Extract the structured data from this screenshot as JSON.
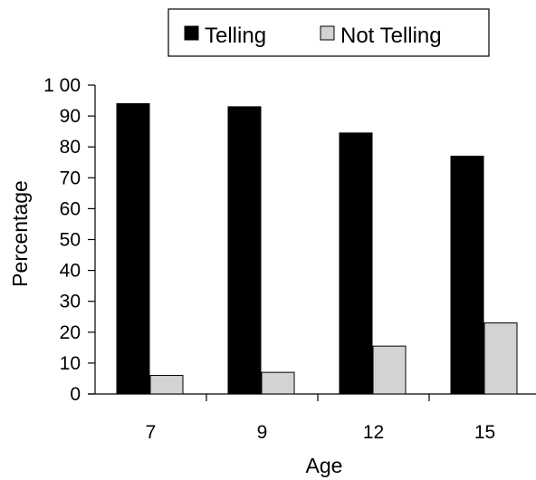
{
  "chart_data": {
    "type": "bar",
    "title": "",
    "xlabel": "Age",
    "ylabel": "Percentage",
    "categories": [
      "7",
      "9",
      "12",
      "15"
    ],
    "series": [
      {
        "name": "Telling",
        "values": [
          94,
          93,
          84.5,
          77
        ],
        "color": "#000000"
      },
      {
        "name": "Not Telling",
        "values": [
          6,
          7,
          15.5,
          23
        ],
        "color": "#d3d3d3"
      }
    ],
    "ylim": [
      0,
      100
    ],
    "yticks": [
      0,
      10,
      20,
      30,
      40,
      50,
      60,
      70,
      80,
      90,
      100
    ],
    "ytick_labels": [
      "0",
      "10",
      "20",
      "30",
      "40",
      "50",
      "60",
      "70",
      "80",
      "90",
      "1 00"
    ],
    "grid": false,
    "legend": {
      "placement": "top-right",
      "boxed": true
    }
  }
}
